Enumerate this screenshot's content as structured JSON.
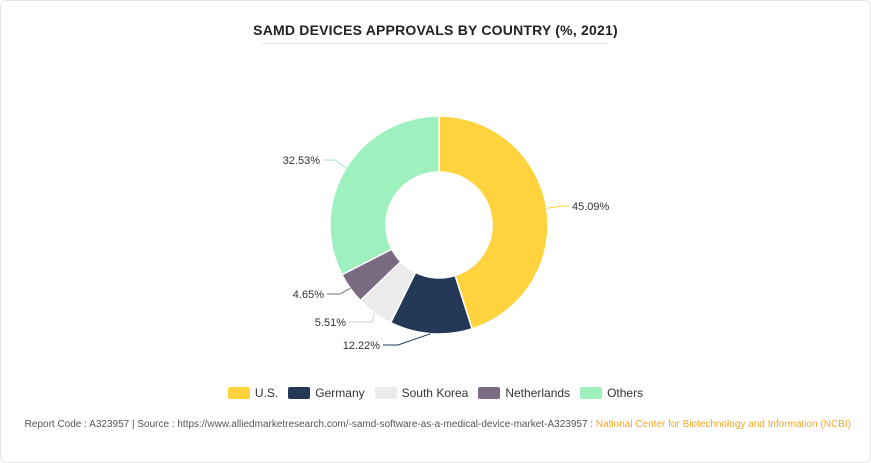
{
  "chart_data": {
    "type": "pie",
    "title": "SAMD DEVICES APPROVALS BY COUNTRY (%, 2021)",
    "categories": [
      "U.S.",
      "Germany",
      "South Korea",
      "Netherlands",
      "Others"
    ],
    "values": [
      45.09,
      12.22,
      5.51,
      4.65,
      32.53
    ],
    "labels": [
      "45.09%",
      "12.22%",
      "5.51%",
      "4.65%",
      "32.53%"
    ],
    "colors": [
      "#ffd33d",
      "#253858",
      "#ebebeb",
      "#7a6b82",
      "#9ff0bf"
    ],
    "donut": true,
    "legend": "bottom"
  },
  "footer": {
    "text": "Report Code : A323957  |  Source : https://www.alliedmarketresearch.com/-samd-software-as-a-medical-device-market-A323957 : ",
    "source": "National Center for Biotechnology and Information (NCBI)"
  }
}
